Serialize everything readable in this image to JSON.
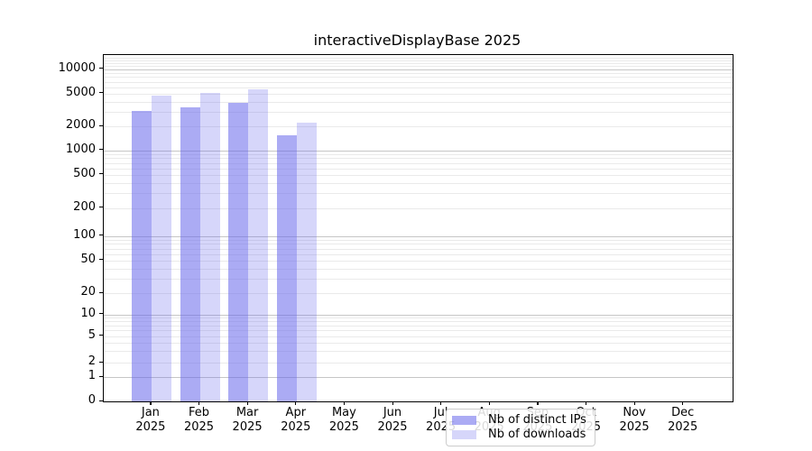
{
  "title": "interactiveDisplayBase 2025",
  "chart_data": {
    "type": "bar",
    "title": "interactiveDisplayBase 2025",
    "subtitle": "",
    "xlabel": "",
    "ylabel": "",
    "x_tick_months": [
      "Jan",
      "Feb",
      "Mar",
      "Apr",
      "May",
      "Jun",
      "Jul",
      "Aug",
      "Sep",
      "Oct",
      "Nov",
      "Dec"
    ],
    "x_tick_year": "2025",
    "categories": [
      "Jan 2025",
      "Feb 2025",
      "Mar 2025",
      "Apr 2025",
      "May 2025",
      "Jun 2025",
      "Jul 2025",
      "Aug 2025",
      "Sep 2025",
      "Oct 2025",
      "Nov 2025",
      "Dec 2025"
    ],
    "series": [
      {
        "name": "Nb of distinct IPs",
        "color": "rgba(102,102,235,0.55)",
        "approx_hex": "#a8a8f3",
        "values": [
          3050,
          3400,
          3850,
          1550,
          0,
          0,
          0,
          0,
          0,
          0,
          0,
          0
        ]
      },
      {
        "name": "Nb of downloads",
        "color": "rgba(102,102,235,0.27)",
        "approx_hex": "#d6d6f8",
        "values": [
          4700,
          5100,
          5700,
          2200,
          0,
          0,
          0,
          0,
          0,
          0,
          0,
          0
        ]
      }
    ],
    "y_axis": {
      "scale": "symlog",
      "tick_values": [
        0,
        1,
        2,
        5,
        10,
        20,
        50,
        100,
        200,
        500,
        1000,
        2000,
        5000,
        10000
      ],
      "tick_labels": [
        "0",
        "1",
        "2",
        "5",
        "10",
        "20",
        "50",
        "100",
        "200",
        "500",
        "1000",
        "2000",
        "5000",
        "10000"
      ],
      "ylim": [
        0,
        15000
      ]
    },
    "grid": {
      "orientation": "horizontal",
      "major_color": "#c6c6c6",
      "minor_color": "#eaeaea",
      "major_at": [
        1,
        10,
        100,
        1000,
        10000
      ]
    },
    "legend": {
      "position": "inside-bottom-center",
      "entries": [
        "Nb of distinct IPs",
        "Nb of downloads"
      ]
    }
  }
}
